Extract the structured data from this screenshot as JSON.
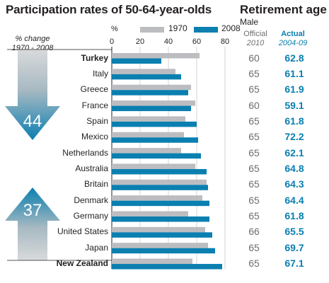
{
  "title": "Participation rates of 50-64-year-olds",
  "retirement": {
    "title": "Retirement age",
    "subtitle": "Male",
    "official_label": "Official",
    "official_year": "2010",
    "actual_label": "Actual",
    "actual_year": "2004-09"
  },
  "change_caption": [
    "% change",
    "1970 - 2008"
  ],
  "change_down": "44",
  "change_up": "37",
  "colors": {
    "series_1970": "#bcbdc0",
    "series_2008": "#0a7fb0",
    "accent": "#0a7fb0",
    "official_text": "#6d6e71"
  },
  "chart_data": {
    "type": "bar",
    "orientation": "horizontal",
    "title": "Participation rates of 50-64-year-olds",
    "xlabel": "%",
    "xlim": [
      0,
      80
    ],
    "xticks": [
      0,
      20,
      40,
      60,
      80
    ],
    "grid": true,
    "legend_position": "top",
    "categories": [
      "Turkey",
      "Italy",
      "Greece",
      "France",
      "Spain",
      "Mexico",
      "Netherlands",
      "Australia",
      "Britain",
      "Denmark",
      "Germany",
      "United States",
      "Japan",
      "New Zealand"
    ],
    "bold_categories": [
      "Turkey",
      "New Zealand"
    ],
    "series": [
      {
        "name": "1970",
        "values": [
          62,
          45,
          56,
          59,
          52,
          51,
          49,
          59,
          67,
          64,
          54,
          66,
          68,
          57
        ]
      },
      {
        "name": "2008",
        "values": [
          35,
          49,
          54,
          56,
          60,
          61,
          63,
          67,
          68,
          69,
          69,
          71,
          73,
          78
        ]
      }
    ]
  },
  "retirement_table": [
    {
      "country": "Turkey",
      "official": "60",
      "actual": "62.8"
    },
    {
      "country": "Italy",
      "official": "65",
      "actual": "61.1"
    },
    {
      "country": "Greece",
      "official": "65",
      "actual": "61.9"
    },
    {
      "country": "France",
      "official": "60",
      "actual": "59.1"
    },
    {
      "country": "Spain",
      "official": "65",
      "actual": "61.8"
    },
    {
      "country": "Mexico",
      "official": "65",
      "actual": "72.2"
    },
    {
      "country": "Netherlands",
      "official": "65",
      "actual": "62.1"
    },
    {
      "country": "Australia",
      "official": "65",
      "actual": "64.8"
    },
    {
      "country": "Britain",
      "official": "65",
      "actual": "64.3"
    },
    {
      "country": "Denmark",
      "official": "65",
      "actual": "64.4"
    },
    {
      "country": "Germany",
      "official": "65",
      "actual": "61.8"
    },
    {
      "country": "United States",
      "official": "66",
      "actual": "65.5"
    },
    {
      "country": "Japan",
      "official": "65",
      "actual": "69.7"
    },
    {
      "country": "New Zealand",
      "official": "65",
      "actual": "67.1"
    }
  ]
}
